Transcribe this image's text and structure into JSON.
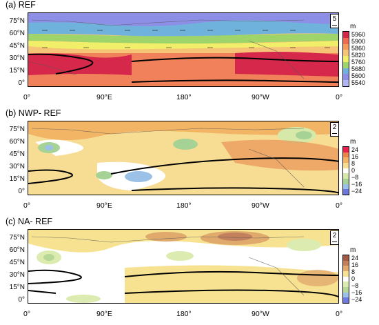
{
  "panels": [
    {
      "title": "(a) REF",
      "ref_vector": "5",
      "unit": "m",
      "colorbar": [
        "5960",
        "5900",
        "5860",
        "5820",
        "5760",
        "5680",
        "5600",
        "5540"
      ],
      "colors": [
        "#d6284b",
        "#ee6b52",
        "#f59a5a",
        "#f6c476",
        "#f1ef6a",
        "#9fd46a",
        "#6fb3dc",
        "#8d8fe6",
        "#b1b6f2"
      ]
    },
    {
      "title": "(b) NWP- REF",
      "ref_vector": "2",
      "unit": "m",
      "colorbar": [
        "24",
        "16",
        "8",
        "0",
        "−8",
        "−16",
        "−24"
      ],
      "colors": [
        "#e8234f",
        "#e8854a",
        "#f1b565",
        "#f7dc94",
        "#ffffff",
        "#d6e9a8",
        "#a6d296",
        "#9bc1e7",
        "#6e78dc"
      ]
    },
    {
      "title": "(c) NA- REF",
      "ref_vector": "2",
      "unit": "m",
      "colorbar": [
        "24",
        "16",
        "8",
        "0",
        "−8",
        "−16",
        "−24"
      ],
      "colors": [
        "#a35a45",
        "#c2805d",
        "#e0aa6d",
        "#f6e290",
        "#ffffff",
        "#dcecb0",
        "#b7d797",
        "#9cc0e7",
        "#6e7ae0"
      ]
    }
  ],
  "lat_labels": [
    "75°N",
    "60°N",
    "45°N",
    "30°N",
    "15°N",
    "0°"
  ],
  "lon_labels": [
    "0°",
    "90°E",
    "180°",
    "90°W",
    "0°"
  ]
}
